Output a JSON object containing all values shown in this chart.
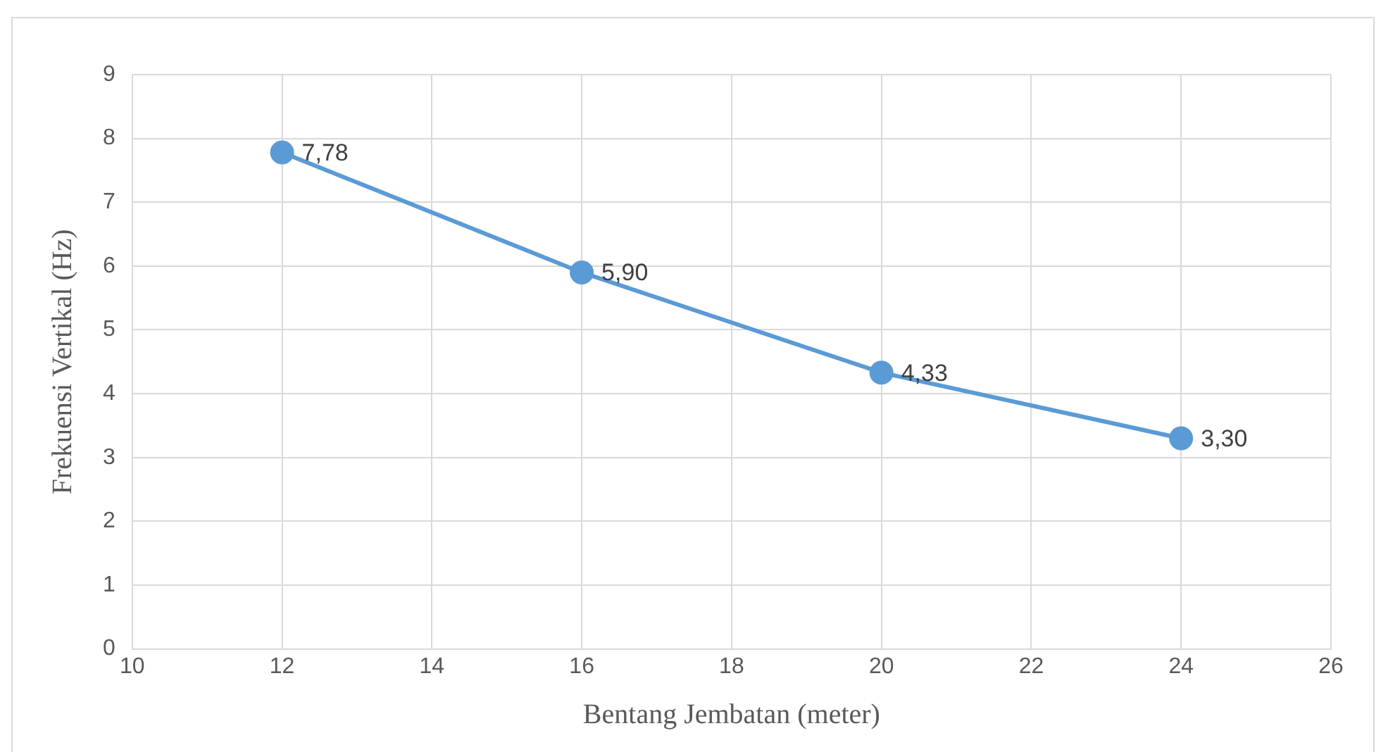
{
  "chart_data": {
    "type": "line",
    "xlabel": "Bentang Jembatan (meter)",
    "ylabel": "Frekuensi Vertikal (Hz)",
    "x": [
      12,
      16,
      20,
      24
    ],
    "series": [
      {
        "color": "#5b9bd5",
        "values": [
          7.78,
          5.9,
          4.33,
          3.3
        ],
        "value_labels": [
          "7,78",
          "5,90",
          "4,33",
          "3,30"
        ]
      }
    ],
    "xlim": [
      10,
      26
    ],
    "xticks": [
      10,
      12,
      14,
      16,
      18,
      20,
      22,
      24,
      26
    ],
    "ylim": [
      0,
      9
    ],
    "yticks": [
      0,
      1,
      2,
      3,
      4,
      5,
      6,
      7,
      8,
      9
    ],
    "grid": true,
    "legend": false,
    "marker": "circle",
    "line_style": "solid"
  }
}
